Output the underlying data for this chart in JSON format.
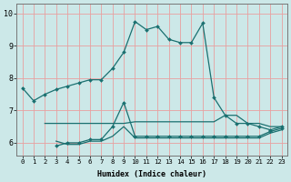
{
  "xlabel": "Humidex (Indice chaleur)",
  "ylabel": "",
  "bg_color": "#cce8e8",
  "grid_color": "#e8a0a0",
  "line_color": "#1a7070",
  "xlim": [
    -0.5,
    23.5
  ],
  "ylim": [
    5.6,
    10.3
  ],
  "yticks": [
    6,
    7,
    8,
    9,
    10
  ],
  "xticks": [
    0,
    1,
    2,
    3,
    4,
    5,
    6,
    7,
    8,
    9,
    10,
    11,
    12,
    13,
    14,
    15,
    16,
    17,
    18,
    19,
    20,
    21,
    22,
    23
  ],
  "series": [
    {
      "x": [
        0,
        1,
        2,
        3,
        4,
        5,
        6,
        7,
        8,
        9,
        10,
        11,
        12,
        13,
        14,
        15,
        16,
        17,
        18,
        19,
        20,
        21,
        22,
        23
      ],
      "y": [
        7.7,
        7.3,
        7.5,
        7.65,
        7.75,
        7.85,
        7.95,
        7.95,
        8.3,
        8.8,
        9.75,
        9.5,
        9.6,
        9.2,
        9.1,
        9.1,
        9.7,
        7.4,
        6.85,
        6.6,
        6.6,
        6.5,
        6.4,
        6.5
      ],
      "markers": true
    },
    {
      "x": [
        2,
        3,
        4,
        5,
        6,
        7,
        8,
        9,
        10,
        11,
        12,
        13,
        14,
        15,
        16,
        17,
        18,
        19,
        20,
        21,
        22,
        23
      ],
      "y": [
        6.6,
        6.6,
        6.6,
        6.6,
        6.6,
        6.6,
        6.6,
        6.6,
        6.65,
        6.65,
        6.65,
        6.65,
        6.65,
        6.65,
        6.65,
        6.65,
        6.85,
        6.85,
        6.6,
        6.6,
        6.5,
        6.5
      ],
      "markers": false
    },
    {
      "x": [
        3,
        4,
        5,
        6,
        7,
        8,
        9,
        10,
        11,
        12,
        13,
        14,
        15,
        16,
        17,
        18,
        19,
        20,
        21,
        22,
        23
      ],
      "y": [
        5.9,
        6.0,
        6.0,
        6.1,
        6.1,
        6.5,
        7.25,
        6.2,
        6.2,
        6.2,
        6.2,
        6.2,
        6.2,
        6.2,
        6.2,
        6.2,
        6.2,
        6.2,
        6.2,
        6.35,
        6.45
      ],
      "markers": true
    },
    {
      "x": [
        3,
        4,
        5,
        6,
        7,
        8,
        9,
        10,
        11,
        12,
        13,
        14,
        15,
        16,
        17,
        18,
        19,
        20,
        21,
        22,
        23
      ],
      "y": [
        6.05,
        5.95,
        5.95,
        6.05,
        6.05,
        6.2,
        6.5,
        6.15,
        6.15,
        6.15,
        6.15,
        6.15,
        6.15,
        6.15,
        6.15,
        6.15,
        6.15,
        6.15,
        6.15,
        6.3,
        6.4
      ],
      "markers": false
    }
  ]
}
